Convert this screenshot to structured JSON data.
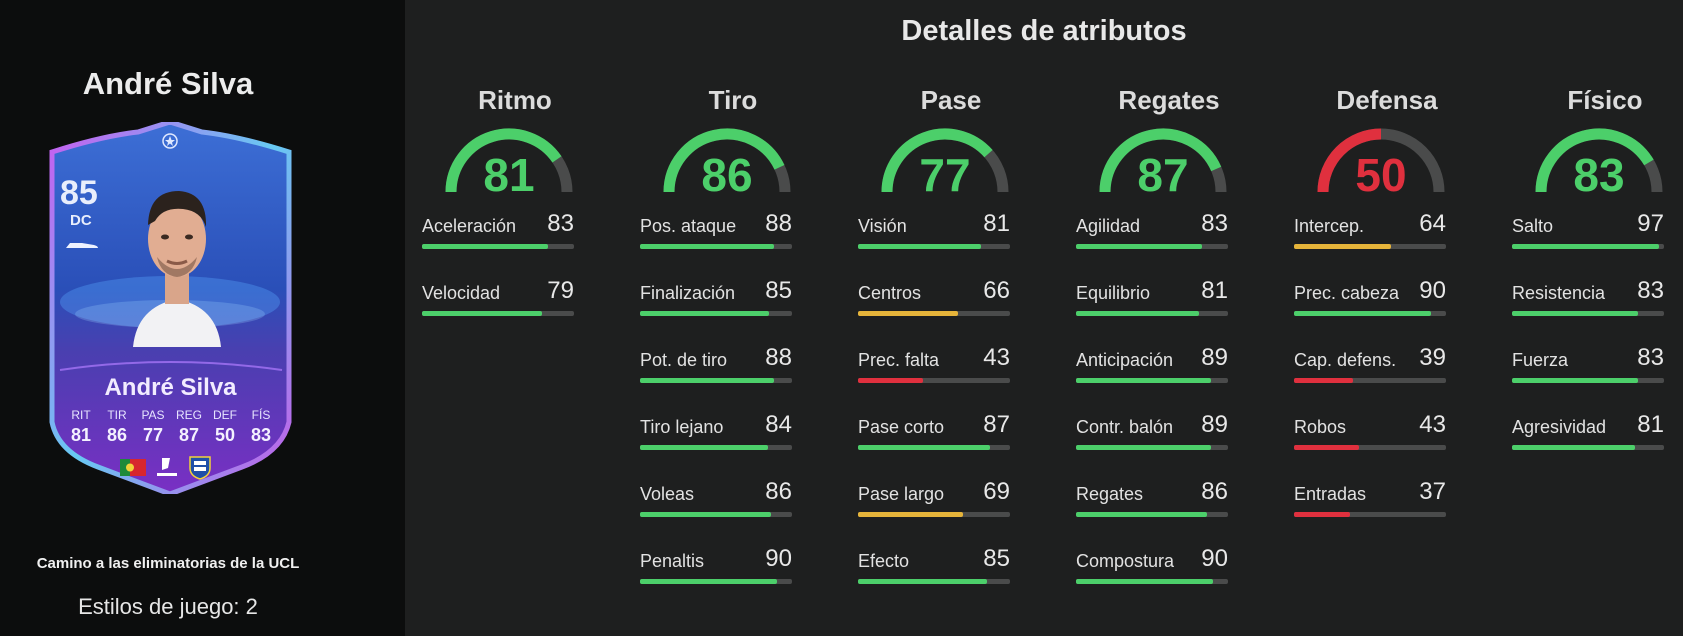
{
  "player": {
    "name": "André Silva",
    "rating": "85",
    "position": "DC",
    "card_name": "André Silva",
    "stat_labels": [
      "RIT",
      "TIR",
      "PAS",
      "REG",
      "DEF",
      "FÍS"
    ],
    "stat_values": [
      "81",
      "86",
      "77",
      "87",
      "50",
      "83"
    ],
    "promo": "Camino a las eliminatorias de la UCL",
    "playstyles": "Estilos de juego: 2"
  },
  "colors": {
    "green": "#4ccf6a",
    "yellow": "#e6b43a",
    "red": "#e0303e",
    "track": "#4a4b4b"
  },
  "title": "Detalles de atributos",
  "groups": [
    {
      "name": "Ritmo",
      "value": 81,
      "color": "green",
      "attrs": [
        {
          "name": "Aceleración",
          "value": 83,
          "color": "green"
        },
        {
          "name": "Velocidad",
          "value": 79,
          "color": "green"
        }
      ]
    },
    {
      "name": "Tiro",
      "value": 86,
      "color": "green",
      "attrs": [
        {
          "name": "Pos. ataque",
          "value": 88,
          "color": "green"
        },
        {
          "name": "Finalización",
          "value": 85,
          "color": "green"
        },
        {
          "name": "Pot. de tiro",
          "value": 88,
          "color": "green"
        },
        {
          "name": "Tiro lejano",
          "value": 84,
          "color": "green"
        },
        {
          "name": "Voleas",
          "value": 86,
          "color": "green"
        },
        {
          "name": "Penaltis",
          "value": 90,
          "color": "green"
        }
      ]
    },
    {
      "name": "Pase",
      "value": 77,
      "color": "green",
      "attrs": [
        {
          "name": "Visión",
          "value": 81,
          "color": "green"
        },
        {
          "name": "Centros",
          "value": 66,
          "color": "yellow"
        },
        {
          "name": "Prec. falta",
          "value": 43,
          "color": "red"
        },
        {
          "name": "Pase corto",
          "value": 87,
          "color": "green"
        },
        {
          "name": "Pase largo",
          "value": 69,
          "color": "yellow"
        },
        {
          "name": "Efecto",
          "value": 85,
          "color": "green"
        }
      ]
    },
    {
      "name": "Regates",
      "value": 87,
      "color": "green",
      "attrs": [
        {
          "name": "Agilidad",
          "value": 83,
          "color": "green"
        },
        {
          "name": "Equilibrio",
          "value": 81,
          "color": "green"
        },
        {
          "name": "Anticipación",
          "value": 89,
          "color": "green"
        },
        {
          "name": "Contr. balón",
          "value": 89,
          "color": "green"
        },
        {
          "name": "Regates",
          "value": 86,
          "color": "green"
        },
        {
          "name": "Compostura",
          "value": 90,
          "color": "green"
        }
      ]
    },
    {
      "name": "Defensa",
      "value": 50,
      "color": "red",
      "attrs": [
        {
          "name": "Intercep.",
          "value": 64,
          "color": "yellow"
        },
        {
          "name": "Prec. cabeza",
          "value": 90,
          "color": "green"
        },
        {
          "name": "Cap. defens.",
          "value": 39,
          "color": "red"
        },
        {
          "name": "Robos",
          "value": 43,
          "color": "red"
        },
        {
          "name": "Entradas",
          "value": 37,
          "color": "red"
        }
      ]
    },
    {
      "name": "Físico",
      "value": 83,
      "color": "green",
      "attrs": [
        {
          "name": "Salto",
          "value": 97,
          "color": "green"
        },
        {
          "name": "Resistencia",
          "value": 83,
          "color": "green"
        },
        {
          "name": "Fuerza",
          "value": 83,
          "color": "green"
        },
        {
          "name": "Agresividad",
          "value": 81,
          "color": "green"
        }
      ]
    }
  ]
}
